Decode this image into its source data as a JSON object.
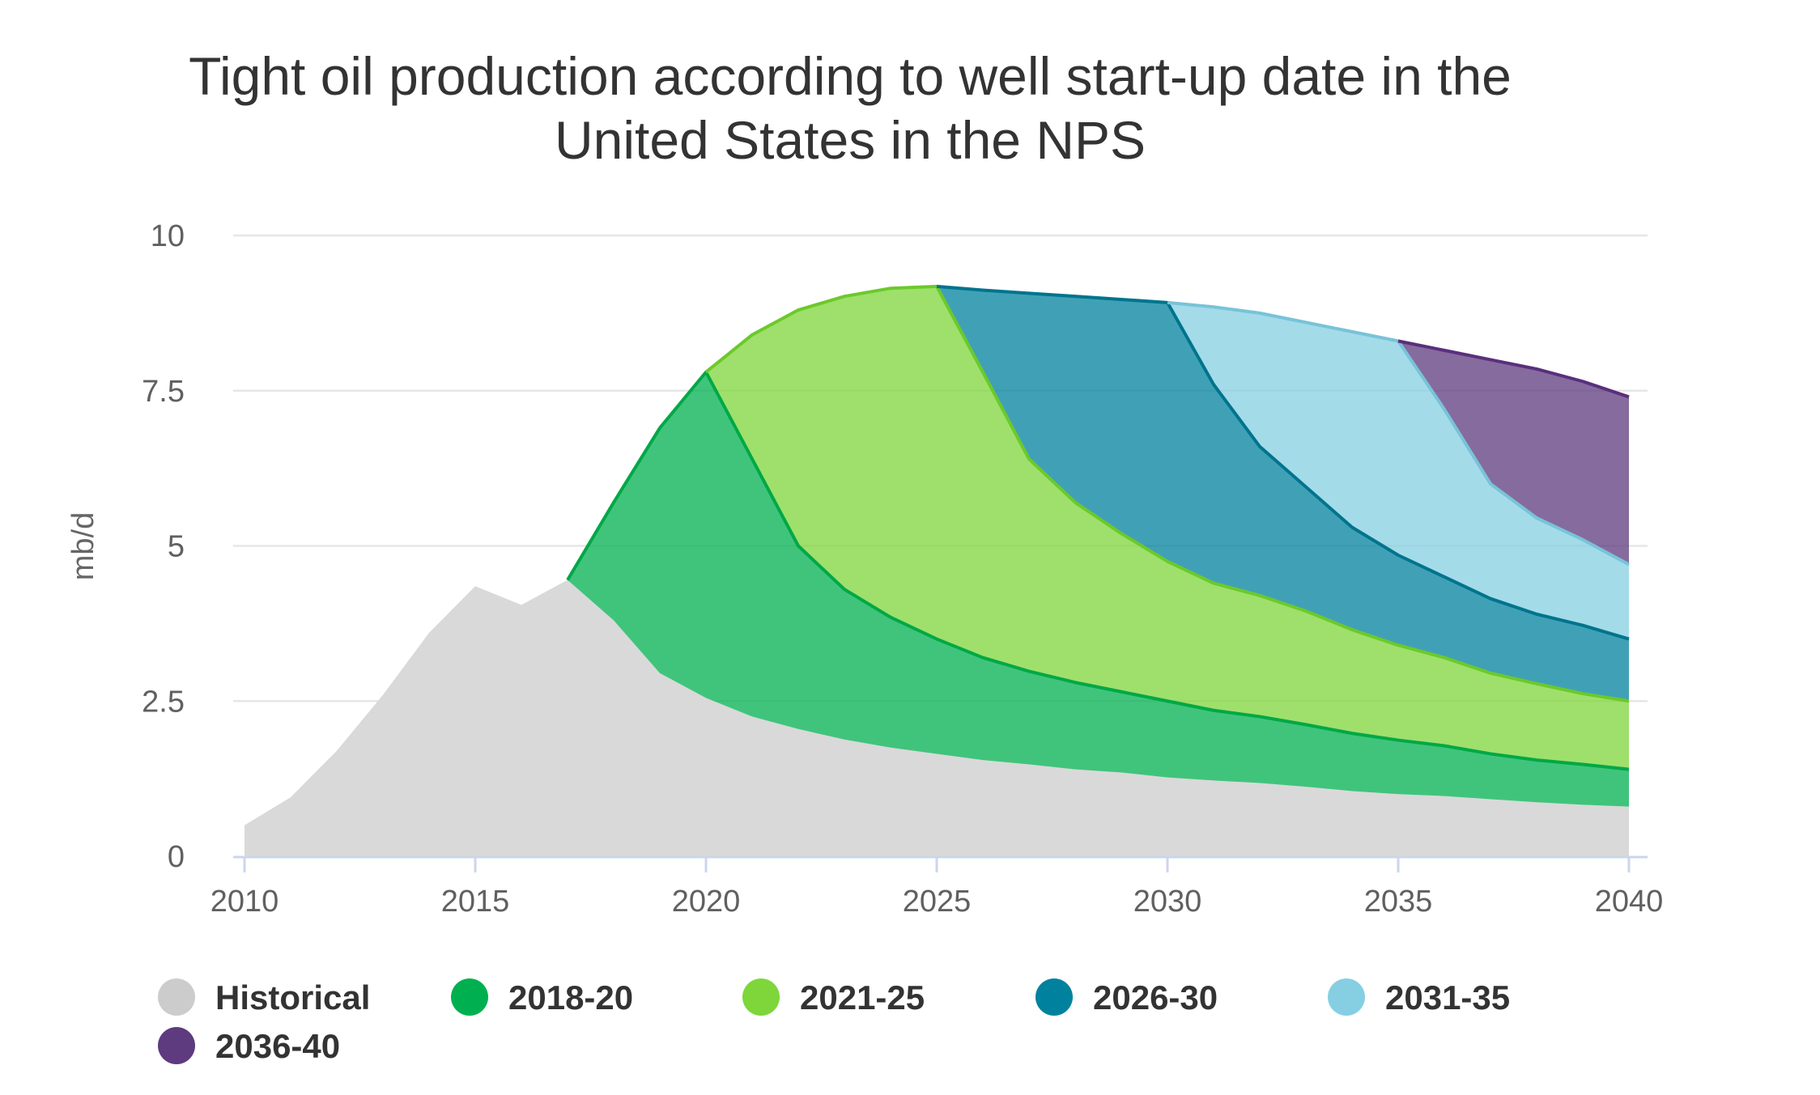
{
  "chart_data": {
    "type": "area",
    "title": "Tight oil production according to well start-up date in the United States in the NPS",
    "title_lines": [
      "Tight oil production according to well start-up date in the",
      "United States in the NPS"
    ],
    "xlabel": "",
    "ylabel": "mb/d",
    "xlim": [
      2010,
      2040
    ],
    "ylim": [
      0,
      10
    ],
    "x_ticks": [
      2010,
      2015,
      2020,
      2025,
      2030,
      2035,
      2040
    ],
    "y_ticks": [
      0,
      2.5,
      5,
      7.5,
      10
    ],
    "y_tick_labels": [
      "0",
      "2.5",
      "5",
      "7.5",
      "10"
    ],
    "grid": true,
    "legend_position": "bottom",
    "series": [
      {
        "name": "Historical",
        "color": "#d9d9d9",
        "line_color": "#d9d9d9",
        "points": [
          [
            2010,
            0.5
          ],
          [
            2011,
            0.95
          ],
          [
            2012,
            1.7
          ],
          [
            2013,
            2.6
          ],
          [
            2014,
            3.6
          ],
          [
            2015,
            4.35
          ],
          [
            2016,
            4.05
          ],
          [
            2017,
            4.45
          ],
          [
            2018,
            3.8
          ],
          [
            2019,
            2.95
          ],
          [
            2020,
            2.55
          ],
          [
            2021,
            2.25
          ],
          [
            2022,
            2.05
          ],
          [
            2023,
            1.88
          ],
          [
            2024,
            1.75
          ],
          [
            2025,
            1.65
          ],
          [
            2026,
            1.55
          ],
          [
            2027,
            1.48
          ],
          [
            2028,
            1.4
          ],
          [
            2029,
            1.35
          ],
          [
            2030,
            1.27
          ],
          [
            2031,
            1.22
          ],
          [
            2032,
            1.18
          ],
          [
            2033,
            1.12
          ],
          [
            2034,
            1.05
          ],
          [
            2035,
            1.0
          ],
          [
            2036,
            0.97
          ],
          [
            2037,
            0.92
          ],
          [
            2038,
            0.87
          ],
          [
            2039,
            0.83
          ],
          [
            2040,
            0.8
          ]
        ]
      },
      {
        "name": "2018-20",
        "color": "#00b050",
        "line_color": "#00a846",
        "points": [
          [
            2017,
            4.45
          ],
          [
            2018,
            5.7
          ],
          [
            2019,
            6.9
          ],
          [
            2020,
            7.8
          ],
          [
            2021,
            6.4
          ],
          [
            2022,
            5.0
          ],
          [
            2023,
            4.3
          ],
          [
            2024,
            3.85
          ],
          [
            2025,
            3.5
          ],
          [
            2026,
            3.2
          ],
          [
            2027,
            2.98
          ],
          [
            2028,
            2.8
          ],
          [
            2029,
            2.65
          ],
          [
            2030,
            2.5
          ],
          [
            2031,
            2.35
          ],
          [
            2032,
            2.25
          ],
          [
            2033,
            2.12
          ],
          [
            2034,
            1.98
          ],
          [
            2035,
            1.87
          ],
          [
            2036,
            1.78
          ],
          [
            2037,
            1.65
          ],
          [
            2038,
            1.55
          ],
          [
            2039,
            1.48
          ],
          [
            2040,
            1.4
          ]
        ]
      },
      {
        "name": "2021-25",
        "color": "#7ed63a",
        "line_color": "#6cc92a",
        "points": [
          [
            2020,
            7.8
          ],
          [
            2021,
            8.4
          ],
          [
            2022,
            8.8
          ],
          [
            2023,
            9.02
          ],
          [
            2024,
            9.15
          ],
          [
            2025,
            9.18
          ],
          [
            2026,
            7.8
          ],
          [
            2027,
            6.4
          ],
          [
            2028,
            5.7
          ],
          [
            2029,
            5.2
          ],
          [
            2030,
            4.75
          ],
          [
            2031,
            4.4
          ],
          [
            2032,
            4.2
          ],
          [
            2033,
            3.95
          ],
          [
            2034,
            3.65
          ],
          [
            2035,
            3.4
          ],
          [
            2036,
            3.2
          ],
          [
            2037,
            2.95
          ],
          [
            2038,
            2.78
          ],
          [
            2039,
            2.62
          ],
          [
            2040,
            2.5
          ]
        ]
      },
      {
        "name": "2026-30",
        "color": "#00829e",
        "line_color": "#00748d",
        "points": [
          [
            2025,
            9.18
          ],
          [
            2026,
            9.12
          ],
          [
            2027,
            9.07
          ],
          [
            2028,
            9.02
          ],
          [
            2029,
            8.97
          ],
          [
            2030,
            8.92
          ],
          [
            2031,
            7.6
          ],
          [
            2032,
            6.6
          ],
          [
            2033,
            5.95
          ],
          [
            2034,
            5.3
          ],
          [
            2035,
            4.85
          ],
          [
            2036,
            4.5
          ],
          [
            2037,
            4.15
          ],
          [
            2038,
            3.9
          ],
          [
            2039,
            3.72
          ],
          [
            2040,
            3.5
          ]
        ]
      },
      {
        "name": "2031-35",
        "color": "#86cfe2",
        "line_color": "#78c3d8",
        "points": [
          [
            2030,
            8.92
          ],
          [
            2031,
            8.85
          ],
          [
            2032,
            8.75
          ],
          [
            2033,
            8.6
          ],
          [
            2034,
            8.45
          ],
          [
            2035,
            8.3
          ],
          [
            2036,
            7.2
          ],
          [
            2037,
            6.0
          ],
          [
            2038,
            5.45
          ],
          [
            2039,
            5.1
          ],
          [
            2040,
            4.7
          ]
        ]
      },
      {
        "name": "2036-40",
        "color": "#5e3a7e",
        "line_color": "#5a2f7d",
        "points": [
          [
            2035,
            8.3
          ],
          [
            2036,
            8.15
          ],
          [
            2037,
            8.0
          ],
          [
            2038,
            7.85
          ],
          [
            2039,
            7.65
          ],
          [
            2040,
            7.4
          ]
        ]
      }
    ]
  },
  "legend": [
    {
      "label": "Historical",
      "color": "#cccccc"
    },
    {
      "label": "2018-20",
      "color": "#00b050"
    },
    {
      "label": "2021-25",
      "color": "#7ed63a"
    },
    {
      "label": "2026-30",
      "color": "#00829e"
    },
    {
      "label": "2031-35",
      "color": "#86cfe2"
    },
    {
      "label": "2036-40",
      "color": "#5e3a7e"
    }
  ]
}
